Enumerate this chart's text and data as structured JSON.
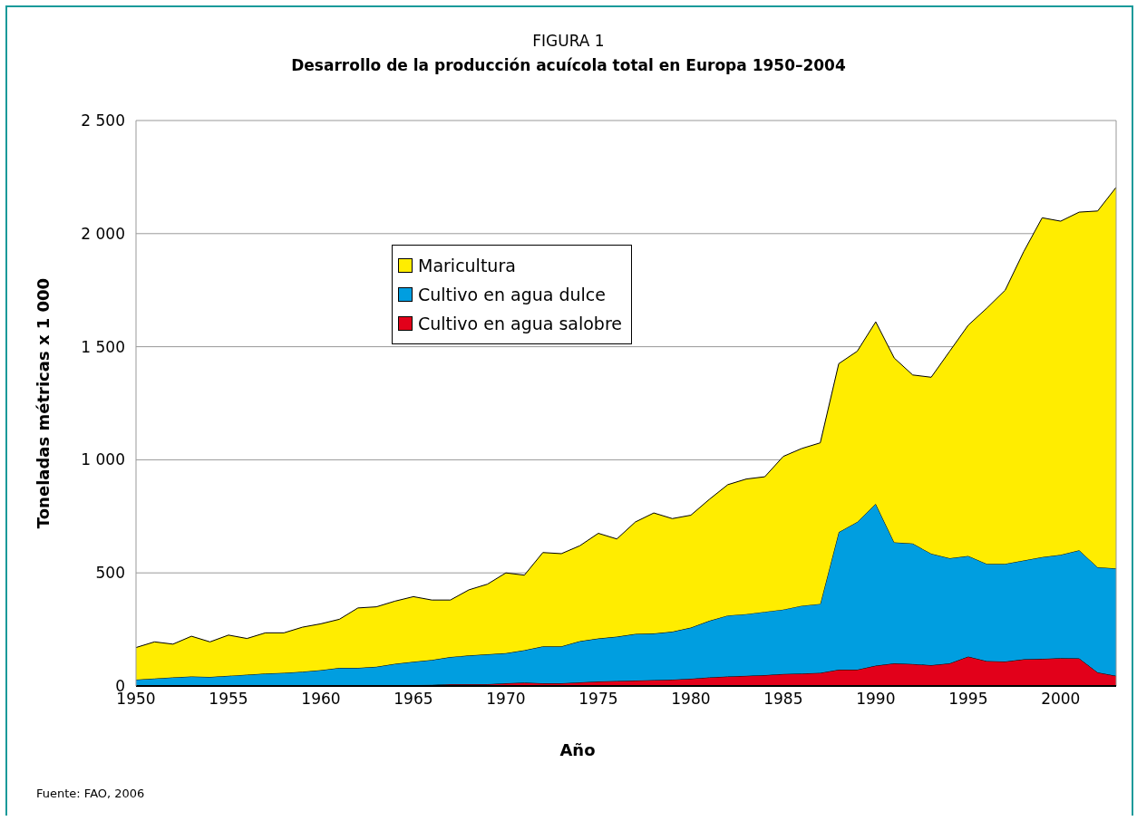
{
  "chart_data": {
    "type": "area",
    "stacked": true,
    "title": "FIGURA 1",
    "subtitle": "Desarrollo de la producción acuícola total en Europa 1950–2004",
    "xlabel": "Año",
    "ylabel": "Toneladas métricas x 1 000",
    "annotations": [
      "Fuente: FAO, 2006"
    ],
    "x": [
      1950,
      1951,
      1952,
      1953,
      1954,
      1955,
      1956,
      1957,
      1958,
      1959,
      1960,
      1961,
      1962,
      1963,
      1964,
      1965,
      1966,
      1967,
      1968,
      1969,
      1970,
      1971,
      1972,
      1973,
      1974,
      1975,
      1976,
      1977,
      1978,
      1979,
      1980,
      1981,
      1982,
      1983,
      1984,
      1985,
      1986,
      1987,
      1988,
      1989,
      1990,
      1991,
      1992,
      1993,
      1994,
      1995,
      1996,
      1997,
      1998,
      1999,
      2000,
      2001,
      2002,
      2003
    ],
    "series": [
      {
        "name": "Cultivo en agua salobre",
        "color": "#e2001a",
        "values": [
          2,
          2,
          2,
          2,
          2,
          2,
          2,
          2,
          2,
          2,
          2,
          2,
          2,
          3,
          3,
          4,
          5,
          8,
          8,
          8,
          12,
          15,
          12,
          12,
          16,
          20,
          22,
          24,
          26,
          28,
          32,
          38,
          42,
          45,
          48,
          53,
          55,
          58,
          72,
          72,
          90,
          100,
          97,
          92,
          100,
          130,
          110,
          108,
          118,
          120,
          123,
          122,
          60,
          45
        ]
      },
      {
        "name": "Cultivo en agua dulce",
        "color": "#009ee0",
        "values": [
          26,
          31,
          36,
          40,
          38,
          43,
          48,
          53,
          56,
          61,
          68,
          78,
          78,
          82,
          95,
          103,
          110,
          120,
          127,
          132,
          133,
          143,
          163,
          163,
          182,
          190,
          196,
          206,
          206,
          212,
          226,
          250,
          270,
          273,
          280,
          285,
          300,
          305,
          608,
          653,
          715,
          535,
          533,
          493,
          465,
          445,
          430,
          432,
          437,
          450,
          457,
          478,
          465,
          475
        ]
      },
      {
        "name": "Maricultura",
        "color": "#ffed00",
        "values": [
          142,
          162,
          147,
          178,
          155,
          180,
          160,
          180,
          177,
          197,
          205,
          215,
          265,
          265,
          277,
          288,
          265,
          252,
          290,
          310,
          355,
          332,
          415,
          410,
          422,
          465,
          432,
          495,
          533,
          500,
          497,
          537,
          578,
          597,
          597,
          677,
          695,
          712,
          745,
          755,
          805,
          815,
          745,
          780,
          915,
          1020,
          1130,
          1210,
          1365,
          1500,
          1475,
          1495,
          1575,
          1685
        ]
      }
    ],
    "xlim": [
      1950,
      2003
    ],
    "xticks": [
      1950,
      1955,
      1960,
      1965,
      1970,
      1975,
      1980,
      1985,
      1990,
      1995,
      2000
    ],
    "ylim": [
      0,
      2500
    ],
    "yticks": [
      0,
      500,
      {
        "value": 1000,
        "label": "1 000"
      },
      {
        "value": 1500,
        "label": "1 500"
      },
      {
        "value": 2000,
        "label": "2 000"
      },
      {
        "value": 2500,
        "label": "2 500"
      }
    ],
    "grid": "y",
    "legend": "top left"
  }
}
